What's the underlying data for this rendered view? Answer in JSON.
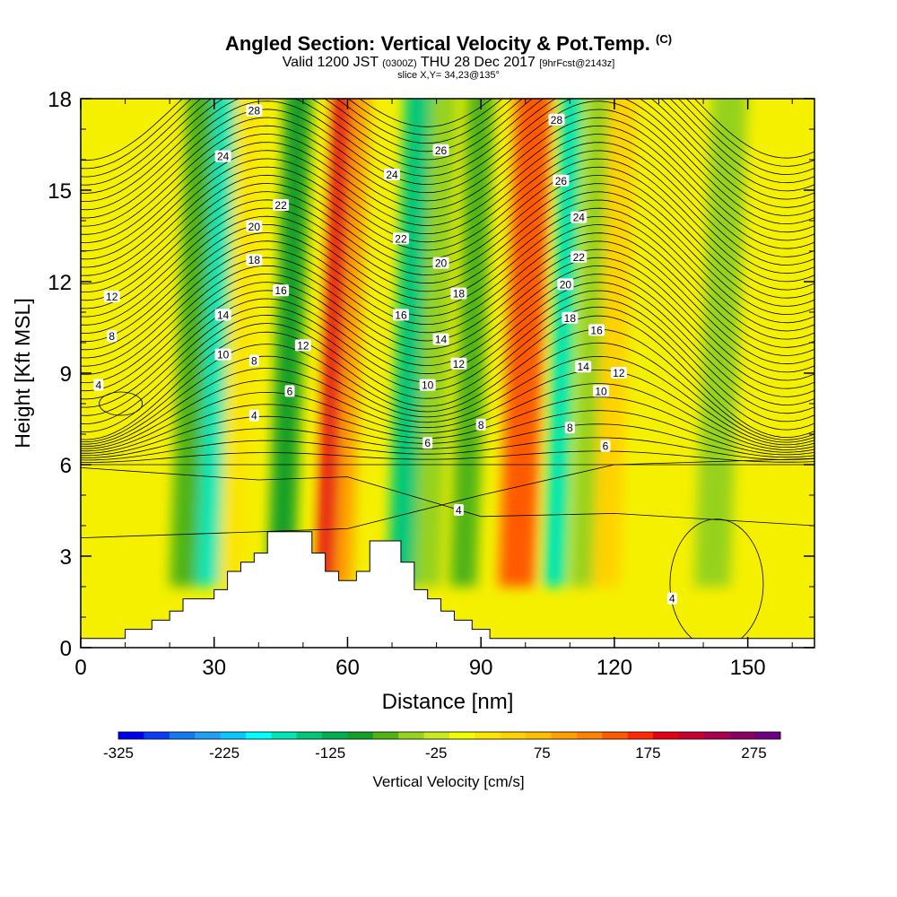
{
  "title": {
    "main": "Angled Section: Vertical Velocity & Pot.Temp.",
    "tag": "(C)",
    "valid_a": "Valid 1200 JST ",
    "valid_b": "(0300Z)",
    "valid_c": " THU 28 Dec 2017 ",
    "valid_d": "[9hrFcst@2143z]",
    "slice": "slice X,Y= 34,23@135°"
  },
  "chart_data": {
    "type": "heatmap",
    "xlabel": "Distance [nm]",
    "ylabel": "Height [Kft MSL]",
    "xlim": [
      0,
      165
    ],
    "ylim": [
      0,
      18
    ],
    "x_ticks": [
      "0",
      "30",
      "60",
      "90",
      "120",
      "150"
    ],
    "y_ticks": [
      "0",
      "3",
      "6",
      "9",
      "12",
      "15",
      "18"
    ],
    "colorbar": {
      "label": "Vertical Velocity [cm/s]",
      "ticks": [
        "-325",
        "-225",
        "-125",
        "-25",
        "75",
        "175",
        "275"
      ],
      "range": [
        -325,
        300
      ],
      "step": 25,
      "colors": [
        "#0000f0",
        "#0a3cf5",
        "#1478f0",
        "#1ea0f5",
        "#0ac8ff",
        "#00ffff",
        "#00e6b4",
        "#00c878",
        "#00b050",
        "#14a028",
        "#50b414",
        "#96d21e",
        "#c8eb1e",
        "#f0ff00",
        "#fae600",
        "#ffd200",
        "#ffbe00",
        "#ffa000",
        "#ff8200",
        "#ff5a00",
        "#ff2800",
        "#e60014",
        "#c80032",
        "#aa0050",
        "#8c0064",
        "#6e0082"
      ]
    },
    "velocity_bands": [
      {
        "x": 20,
        "w": 9,
        "v": -70
      },
      {
        "x": 26,
        "w": 5,
        "v": -160
      },
      {
        "x": 31,
        "w": 6,
        "v": 40
      },
      {
        "x": 42,
        "w": 6,
        "v": -90
      },
      {
        "x": 53,
        "w": 4,
        "v": 200
      },
      {
        "x": 57,
        "w": 4,
        "v": 100
      },
      {
        "x": 69,
        "w": 6,
        "v": -150
      },
      {
        "x": 75,
        "w": 6,
        "v": -40
      },
      {
        "x": 83,
        "w": 6,
        "v": -60
      },
      {
        "x": 94,
        "w": 8,
        "v": 160
      },
      {
        "x": 104,
        "w": 5,
        "v": -160
      },
      {
        "x": 110,
        "w": 5,
        "v": -40
      },
      {
        "x": 115,
        "w": 6,
        "v": 70
      },
      {
        "x": 138,
        "w": 8,
        "v": -40
      }
    ],
    "theta_contour_labels": [
      {
        "x": 4,
        "y": 8.6,
        "text": "4"
      },
      {
        "x": 7,
        "y": 10.2,
        "text": "8"
      },
      {
        "x": 7,
        "y": 11.5,
        "text": "12"
      },
      {
        "x": 32,
        "y": 9.6,
        "text": "10"
      },
      {
        "x": 32,
        "y": 10.9,
        "text": "14"
      },
      {
        "x": 32,
        "y": 16.1,
        "text": "24"
      },
      {
        "x": 39,
        "y": 7.6,
        "text": "4"
      },
      {
        "x": 39,
        "y": 9.4,
        "text": "8"
      },
      {
        "x": 39,
        "y": 13.8,
        "text": "20"
      },
      {
        "x": 39,
        "y": 12.7,
        "text": "18"
      },
      {
        "x": 39,
        "y": 17.6,
        "text": "28"
      },
      {
        "x": 45,
        "y": 14.5,
        "text": "22"
      },
      {
        "x": 45,
        "y": 11.7,
        "text": "16"
      },
      {
        "x": 47,
        "y": 8.4,
        "text": "6"
      },
      {
        "x": 50,
        "y": 9.9,
        "text": "12"
      },
      {
        "x": 70,
        "y": 15.5,
        "text": "24"
      },
      {
        "x": 72,
        "y": 13.4,
        "text": "22"
      },
      {
        "x": 72,
        "y": 10.9,
        "text": "16"
      },
      {
        "x": 78,
        "y": 8.6,
        "text": "10"
      },
      {
        "x": 78,
        "y": 6.7,
        "text": "6"
      },
      {
        "x": 81,
        "y": 12.6,
        "text": "20"
      },
      {
        "x": 81,
        "y": 10.1,
        "text": "14"
      },
      {
        "x": 81,
        "y": 16.3,
        "text": "26"
      },
      {
        "x": 85,
        "y": 11.6,
        "text": "18"
      },
      {
        "x": 85,
        "y": 9.3,
        "text": "12"
      },
      {
        "x": 85,
        "y": 4.5,
        "text": "4"
      },
      {
        "x": 90,
        "y": 7.3,
        "text": "8"
      },
      {
        "x": 107,
        "y": 17.3,
        "text": "28"
      },
      {
        "x": 108,
        "y": 15.3,
        "text": "26"
      },
      {
        "x": 109,
        "y": 11.9,
        "text": "20"
      },
      {
        "x": 110,
        "y": 10.8,
        "text": "18"
      },
      {
        "x": 110,
        "y": 7.2,
        "text": "8"
      },
      {
        "x": 112,
        "y": 14.1,
        "text": "24"
      },
      {
        "x": 112,
        "y": 12.8,
        "text": "22"
      },
      {
        "x": 113,
        "y": 9.2,
        "text": "14"
      },
      {
        "x": 116,
        "y": 10.4,
        "text": "16"
      },
      {
        "x": 117,
        "y": 8.4,
        "text": "10"
      },
      {
        "x": 118,
        "y": 6.6,
        "text": "6"
      },
      {
        "x": 121,
        "y": 9.0,
        "text": "12"
      },
      {
        "x": 133,
        "y": 1.6,
        "text": "4"
      }
    ],
    "terrain_profile": [
      [
        0,
        0.3
      ],
      [
        10,
        0.3
      ],
      [
        10,
        0.6
      ],
      [
        16,
        0.6
      ],
      [
        16,
        0.9
      ],
      [
        20,
        0.9
      ],
      [
        20,
        1.2
      ],
      [
        23,
        1.2
      ],
      [
        23,
        1.6
      ],
      [
        30,
        1.6
      ],
      [
        30,
        1.9
      ],
      [
        33,
        1.9
      ],
      [
        33,
        2.5
      ],
      [
        36,
        2.5
      ],
      [
        36,
        2.8
      ],
      [
        39,
        2.8
      ],
      [
        39,
        3.1
      ],
      [
        42,
        3.1
      ],
      [
        42,
        3.8
      ],
      [
        52,
        3.8
      ],
      [
        52,
        3.1
      ],
      [
        55,
        3.1
      ],
      [
        55,
        2.5
      ],
      [
        58,
        2.5
      ],
      [
        58,
        2.2
      ],
      [
        62,
        2.2
      ],
      [
        62,
        2.5
      ],
      [
        65,
        2.5
      ],
      [
        65,
        3.5
      ],
      [
        72,
        3.5
      ],
      [
        72,
        2.8
      ],
      [
        75,
        2.8
      ],
      [
        75,
        1.9
      ],
      [
        78,
        1.9
      ],
      [
        78,
        1.6
      ],
      [
        81,
        1.6
      ],
      [
        81,
        1.2
      ],
      [
        84,
        1.2
      ],
      [
        84,
        0.9
      ],
      [
        88,
        0.9
      ],
      [
        88,
        0.6
      ],
      [
        92,
        0.6
      ],
      [
        92,
        0.3
      ],
      [
        165,
        0.3
      ]
    ]
  }
}
